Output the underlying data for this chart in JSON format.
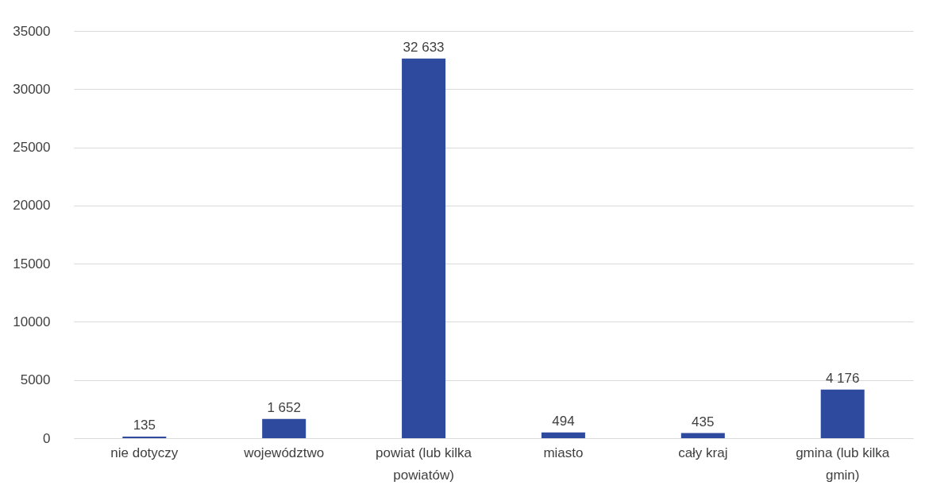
{
  "chart_data": {
    "type": "bar",
    "categories": [
      "nie dotyczy",
      "województwo",
      "powiat (lub kilka powiatów)",
      "miasto",
      "cały kraj",
      "gmina (lub kilka gmin)"
    ],
    "values": [
      135,
      1652,
      32633,
      494,
      435,
      4176
    ],
    "value_labels": [
      "135",
      "1 652",
      "32 633",
      "494",
      "435",
      "4 176"
    ],
    "color": "#2e4a9e",
    "ylim": [
      0,
      35000
    ],
    "yticks": [
      0,
      5000,
      10000,
      15000,
      20000,
      25000,
      30000,
      35000
    ],
    "grid": "y"
  }
}
